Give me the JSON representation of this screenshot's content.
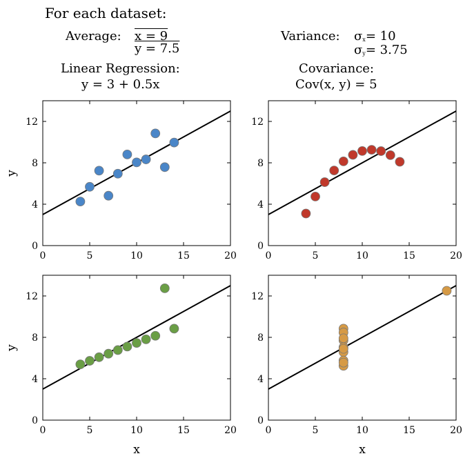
{
  "header": {
    "title": "For each dataset:",
    "average_label": "Average:",
    "mean_x": "x = 9",
    "mean_y": "y = 7.5",
    "variance_label": "Variance:",
    "var_x": "= 10",
    "var_y": "= 3.75",
    "sigma_symbol": "σ",
    "var_x_sub": "x",
    "var_y_sub": "y",
    "regression_label": "Linear Regression:",
    "regression_eq": "y = 3 + 0.5x",
    "covariance_label": "Covariance:",
    "covariance_eq": "Cov(x, y) = 5"
  },
  "chart_data": [
    {
      "type": "scatter",
      "color": "#4a86c8",
      "x": [
        4,
        5,
        6,
        7,
        8,
        9,
        10,
        11,
        12,
        13,
        14
      ],
      "y": [
        4.26,
        5.68,
        7.24,
        4.82,
        6.95,
        8.81,
        8.04,
        8.33,
        10.84,
        7.58,
        9.96
      ],
      "fit": {
        "intercept": 3,
        "slope": 0.5
      },
      "xlim": [
        0,
        20
      ],
      "ylim": [
        0,
        14
      ],
      "xticks": [
        0,
        5,
        10,
        15,
        20
      ],
      "yticks": [
        0,
        4,
        8,
        12
      ],
      "xlabel": "",
      "ylabel": "y"
    },
    {
      "type": "scatter",
      "color": "#c0392b",
      "x": [
        4,
        5,
        6,
        7,
        8,
        9,
        10,
        11,
        12,
        13,
        14
      ],
      "y": [
        3.1,
        4.74,
        6.13,
        7.26,
        8.14,
        8.77,
        9.14,
        9.26,
        9.13,
        8.74,
        8.1
      ],
      "fit": {
        "intercept": 3,
        "slope": 0.5
      },
      "xlim": [
        0,
        20
      ],
      "ylim": [
        0,
        14
      ],
      "xticks": [
        0,
        5,
        10,
        15,
        20
      ],
      "yticks": [
        0,
        4,
        8,
        12
      ],
      "xlabel": "",
      "ylabel": ""
    },
    {
      "type": "scatter",
      "color": "#6a9e45",
      "x": [
        4,
        5,
        6,
        7,
        8,
        9,
        10,
        11,
        12,
        13,
        14
      ],
      "y": [
        5.39,
        5.73,
        6.08,
        6.42,
        6.77,
        7.11,
        7.46,
        7.81,
        8.15,
        12.74,
        8.84
      ],
      "fit": {
        "intercept": 3,
        "slope": 0.5
      },
      "xlim": [
        0,
        20
      ],
      "ylim": [
        0,
        14
      ],
      "xticks": [
        0,
        5,
        10,
        15,
        20
      ],
      "yticks": [
        0,
        4,
        8,
        12
      ],
      "xlabel": "x",
      "ylabel": "y"
    },
    {
      "type": "scatter",
      "color": "#d69a45",
      "x": [
        8,
        8,
        8,
        8,
        8,
        8,
        8,
        19,
        8,
        8,
        8
      ],
      "y": [
        6.58,
        5.76,
        7.71,
        8.84,
        8.47,
        7.04,
        5.25,
        12.5,
        5.56,
        7.91,
        6.89
      ],
      "fit": {
        "intercept": 3,
        "slope": 0.5
      },
      "xlim": [
        0,
        20
      ],
      "ylim": [
        0,
        14
      ],
      "xticks": [
        0,
        5,
        10,
        15,
        20
      ],
      "yticks": [
        0,
        4,
        8,
        12
      ],
      "xlabel": "x",
      "ylabel": ""
    }
  ]
}
